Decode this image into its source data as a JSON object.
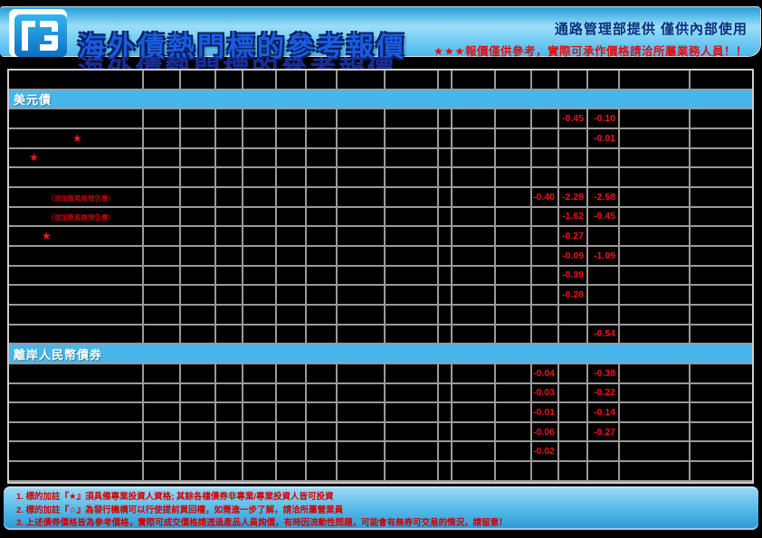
{
  "header": {
    "logo": "hua-nan-bank-logo",
    "title": "海外債熱門標的參考報價",
    "internal_note": "通路管理部提供 僅供內部使用",
    "disclaimer": "★★★報價僅供參考，實際可承作價格請洽所屬業務人員！！"
  },
  "colors": {
    "header_blue_top": "#1d9bd8",
    "header_blue_light": "#9adef9",
    "section_band_blue": "#47b7eb",
    "grid_line": "#9a9a9a",
    "cell_background": "#000000",
    "value_red": "#f21212",
    "title_blue": "#1a5ce0",
    "note_navy": "#0d2f7a",
    "footer_red": "#d40000"
  },
  "table": {
    "sections": [
      "美元債",
      "離岸人民幣債券"
    ],
    "risk_note_text": "（須加簽風險預告書）",
    "star_symbol": "★",
    "rows": [
      {
        "type": "grid"
      },
      {
        "type": "section",
        "label": "美元債"
      },
      {
        "type": "grid",
        "cells": {
          "13": "-0.45",
          "14": "-0.10"
        }
      },
      {
        "type": "grid",
        "star": true,
        "star_indent": 70,
        "cells": {
          "14": "-0.01"
        }
      },
      {
        "type": "grid",
        "star": true,
        "star_indent": 22
      },
      {
        "type": "grid"
      },
      {
        "type": "grid",
        "note": "（須加簽風險預告書）",
        "cells": {
          "12": "-0.40",
          "13": "-2.28",
          "14": "-2.58"
        }
      },
      {
        "type": "grid",
        "note": "（須加簽風險預告書）",
        "cells": {
          "13": "-1.62",
          "14": "-0.45"
        }
      },
      {
        "type": "grid",
        "star": true,
        "star_indent": 36,
        "cells": {
          "13": "-0.27"
        }
      },
      {
        "type": "grid",
        "cells": {
          "13": "-0.09",
          "14": "-1.09"
        }
      },
      {
        "type": "grid",
        "cells": {
          "13": "-0.39"
        }
      },
      {
        "type": "grid",
        "cells": {
          "13": "-0.28"
        }
      },
      {
        "type": "grid"
      },
      {
        "type": "grid",
        "cells": {
          "14": "-0.54"
        }
      },
      {
        "type": "section",
        "label": "離岸人民幣債券"
      },
      {
        "type": "grid",
        "cells": {
          "12": "-0.04",
          "14": "-0.38"
        }
      },
      {
        "type": "grid",
        "cells": {
          "12": "-0.03",
          "14": "-0.22"
        }
      },
      {
        "type": "grid",
        "cells": {
          "12": "-0.01",
          "14": "-0.14"
        }
      },
      {
        "type": "grid",
        "cells": {
          "12": "-0.06",
          "14": "-0.27"
        }
      },
      {
        "type": "grid",
        "cells": {
          "12": "-0.02"
        }
      },
      {
        "type": "grid"
      }
    ]
  },
  "footer": {
    "notes": [
      "1. 標的加註『★』須具備專業投資人資格; 其餘各檔債券非專業/專業投資人皆可投資",
      "2. 標的加註『☆』為發行機構可以行使提前買回權，如需進一步了解，請洽所屬營業員",
      "3. 上述債券價格皆為參考價格，實際可成交價格請透過產品人員詢價，有時因流動性問題，可能會有無券可交易的情況，請留意！"
    ]
  }
}
